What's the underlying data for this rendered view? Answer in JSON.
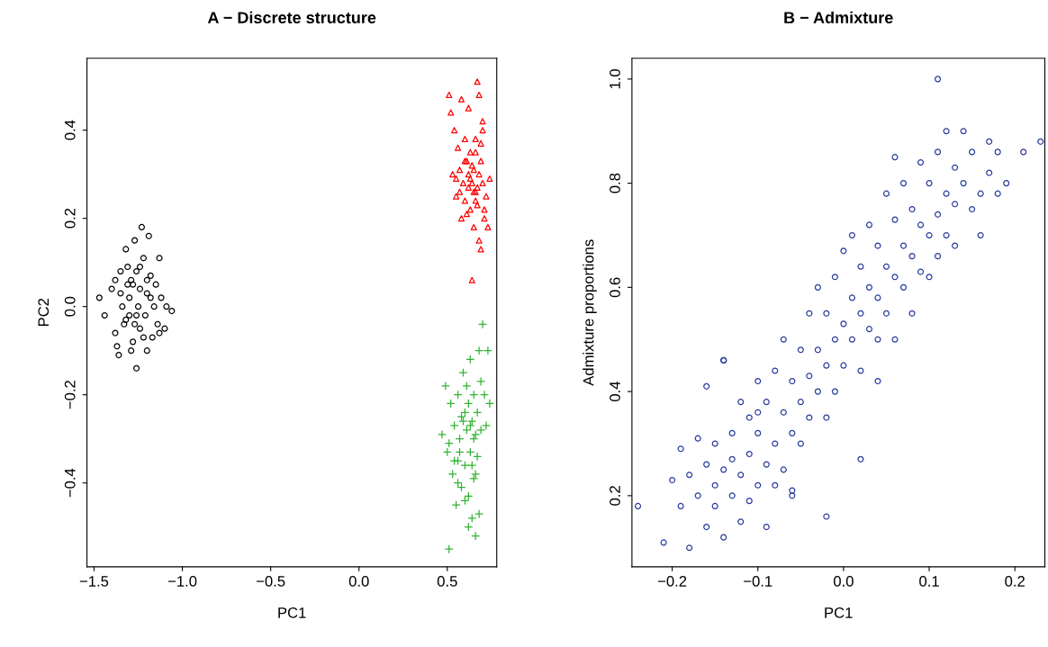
{
  "chart_data": [
    {
      "type": "scatter",
      "title": "A − Discrete structure",
      "xlabel": "PC1",
      "ylabel": "PC2",
      "xlim": [
        -1.54,
        0.78
      ],
      "ylim": [
        -0.59,
        0.563
      ],
      "xticks": [
        {
          "value": -1.5,
          "label": "−1.5"
        },
        {
          "value": -1.0,
          "label": "−1.0"
        },
        {
          "value": -0.5,
          "label": "−0.5"
        },
        {
          "value": 0.0,
          "label": "0.0"
        },
        {
          "value": 0.5,
          "label": "0.5"
        }
      ],
      "yticks": [
        {
          "value": -0.4,
          "label": "−0.4"
        },
        {
          "value": -0.2,
          "label": "−0.2"
        },
        {
          "value": 0.0,
          "label": "0.0"
        },
        {
          "value": 0.2,
          "label": "0.2"
        },
        {
          "value": 0.4,
          "label": "0.4"
        }
      ],
      "grid": false,
      "legend": false,
      "series": [
        {
          "color": "#000000",
          "marker": "circle",
          "x": [
            -1.47,
            -1.44,
            -1.4,
            -1.38,
            -1.37,
            -1.36,
            -1.35,
            -1.34,
            -1.33,
            -1.32,
            -1.31,
            -1.3,
            -1.3,
            -1.29,
            -1.28,
            -1.27,
            -1.26,
            -1.26,
            -1.25,
            -1.24,
            -1.24,
            -1.23,
            -1.22,
            -1.21,
            -1.2,
            -1.2,
            -1.19,
            -1.18,
            -1.17,
            -1.16,
            -1.15,
            -1.14,
            -1.13,
            -1.12,
            -1.1,
            -1.09,
            -1.06,
            -1.28,
            -1.32,
            -1.27,
            -1.22,
            -1.18,
            -1.35,
            -1.29,
            -1.24,
            -1.13,
            -1.31,
            -1.2,
            -1.26,
            -1.38
          ],
          "values": [
            0.02,
            -0.02,
            0.04,
            -0.06,
            -0.09,
            -0.11,
            0.08,
            0.0,
            -0.04,
            0.13,
            0.05,
            -0.02,
            0.02,
            0.06,
            -0.08,
            0.15,
            -0.14,
            0.08,
            0.0,
            -0.05,
            0.04,
            0.18,
            0.11,
            -0.02,
            0.03,
            -0.1,
            0.16,
            0.07,
            -0.07,
            0.0,
            0.05,
            -0.04,
            0.11,
            0.02,
            -0.05,
            0.0,
            -0.01,
            0.05,
            -0.03,
            -0.04,
            -0.07,
            0.02,
            0.03,
            -0.1,
            0.09,
            -0.06,
            0.09,
            0.06,
            -0.02,
            0.06
          ]
        },
        {
          "color": "#ff0000",
          "marker": "triangle",
          "x": [
            0.51,
            0.52,
            0.53,
            0.54,
            0.55,
            0.56,
            0.57,
            0.58,
            0.58,
            0.59,
            0.6,
            0.6,
            0.61,
            0.62,
            0.62,
            0.63,
            0.63,
            0.64,
            0.64,
            0.65,
            0.65,
            0.66,
            0.66,
            0.67,
            0.67,
            0.68,
            0.68,
            0.69,
            0.69,
            0.7,
            0.7,
            0.71,
            0.72,
            0.73,
            0.74,
            0.65,
            0.69,
            0.64,
            0.61,
            0.68,
            0.57,
            0.66,
            0.7,
            0.63,
            0.6,
            0.67,
            0.71,
            0.55,
            0.62,
            0.66
          ],
          "values": [
            0.48,
            0.44,
            0.3,
            0.4,
            0.25,
            0.36,
            0.31,
            0.47,
            0.2,
            0.28,
            0.38,
            0.24,
            0.33,
            0.27,
            0.45,
            0.22,
            0.35,
            0.28,
            0.06,
            0.31,
            0.18,
            0.38,
            0.26,
            0.51,
            0.23,
            0.48,
            0.15,
            0.33,
            0.13,
            0.28,
            0.4,
            0.2,
            0.25,
            0.18,
            0.29,
            0.26,
            0.37,
            0.32,
            0.21,
            0.3,
            0.26,
            0.35,
            0.42,
            0.29,
            0.33,
            0.27,
            0.22,
            0.29,
            0.3,
            0.24
          ]
        },
        {
          "color": "#33b233",
          "marker": "cross",
          "x": [
            0.47,
            0.49,
            0.5,
            0.51,
            0.52,
            0.53,
            0.54,
            0.55,
            0.56,
            0.56,
            0.57,
            0.58,
            0.58,
            0.59,
            0.6,
            0.6,
            0.61,
            0.62,
            0.62,
            0.63,
            0.63,
            0.64,
            0.64,
            0.65,
            0.65,
            0.66,
            0.66,
            0.67,
            0.67,
            0.68,
            0.69,
            0.7,
            0.71,
            0.72,
            0.73,
            0.74,
            0.51,
            0.56,
            0.59,
            0.61,
            0.64,
            0.66,
            0.68,
            0.62,
            0.57,
            0.6,
            0.65,
            0.69,
            0.54,
            0.63
          ],
          "values": [
            -0.29,
            -0.18,
            -0.33,
            -0.55,
            -0.22,
            -0.38,
            -0.27,
            -0.45,
            -0.2,
            -0.35,
            -0.3,
            -0.41,
            -0.25,
            -0.15,
            -0.36,
            -0.44,
            -0.28,
            -0.5,
            -0.22,
            -0.33,
            -0.12,
            -0.26,
            -0.48,
            -0.3,
            -0.2,
            -0.38,
            -0.52,
            -0.24,
            -0.34,
            -0.1,
            -0.28,
            -0.04,
            -0.2,
            -0.27,
            -0.1,
            -0.22,
            -0.31,
            -0.4,
            -0.26,
            -0.18,
            -0.36,
            -0.29,
            -0.47,
            -0.43,
            -0.33,
            -0.24,
            -0.39,
            -0.17,
            -0.35,
            -0.27
          ]
        }
      ]
    },
    {
      "type": "scatter",
      "title": "B − Admixture",
      "xlabel": "PC1",
      "ylabel": "Admixture proportions",
      "xlim": [
        -0.247,
        0.235
      ],
      "ylim": [
        0.0635,
        1.04
      ],
      "xticks": [
        {
          "value": -0.2,
          "label": "−0.2"
        },
        {
          "value": -0.1,
          "label": "−0.1"
        },
        {
          "value": 0.0,
          "label": "0.0"
        },
        {
          "value": 0.1,
          "label": "0.1"
        },
        {
          "value": 0.2,
          "label": "0.2"
        }
      ],
      "yticks": [
        {
          "value": 0.2,
          "label": "0.2"
        },
        {
          "value": 0.4,
          "label": "0.4"
        },
        {
          "value": 0.6,
          "label": "0.6"
        },
        {
          "value": 0.8,
          "label": "0.8"
        },
        {
          "value": 1.0,
          "label": "1.0"
        }
      ],
      "grid": false,
      "legend": false,
      "series": [
        {
          "color": "#283c9e",
          "marker": "circle",
          "x": [
            -0.24,
            -0.21,
            -0.2,
            -0.19,
            -0.19,
            -0.18,
            -0.18,
            -0.17,
            -0.17,
            -0.16,
            -0.16,
            -0.16,
            -0.15,
            -0.15,
            -0.15,
            -0.14,
            -0.14,
            -0.14,
            -0.13,
            -0.13,
            -0.13,
            -0.12,
            -0.12,
            -0.12,
            -0.11,
            -0.11,
            -0.11,
            -0.1,
            -0.1,
            -0.1,
            -0.09,
            -0.09,
            -0.09,
            -0.08,
            -0.08,
            -0.08,
            -0.07,
            -0.07,
            -0.07,
            -0.06,
            -0.06,
            -0.06,
            -0.05,
            -0.05,
            -0.05,
            -0.04,
            -0.04,
            -0.04,
            -0.03,
            -0.03,
            -0.03,
            -0.02,
            -0.02,
            -0.02,
            -0.01,
            -0.01,
            -0.01,
            0.0,
            0.0,
            0.0,
            0.01,
            0.01,
            0.01,
            0.02,
            0.02,
            0.02,
            0.03,
            0.03,
            0.03,
            0.04,
            0.04,
            0.04,
            0.05,
            0.05,
            0.05,
            0.06,
            0.06,
            0.06,
            0.07,
            0.07,
            0.07,
            0.08,
            0.08,
            0.08,
            0.09,
            0.09,
            0.09,
            0.1,
            0.1,
            0.1,
            0.11,
            0.11,
            0.11,
            0.12,
            0.12,
            0.12,
            0.13,
            0.13,
            0.13,
            0.14,
            0.14,
            0.15,
            0.15,
            0.16,
            0.16,
            0.17,
            0.17,
            0.18,
            0.18,
            0.19,
            0.21,
            0.23,
            0.11,
            0.02,
            -0.14,
            -0.02,
            -0.06,
            0.06,
            -0.1,
            0.04
          ],
          "values": [
            0.18,
            0.11,
            0.23,
            0.29,
            0.18,
            0.1,
            0.24,
            0.2,
            0.31,
            0.14,
            0.26,
            0.41,
            0.18,
            0.3,
            0.22,
            0.25,
            0.12,
            0.46,
            0.2,
            0.32,
            0.27,
            0.15,
            0.24,
            0.38,
            0.28,
            0.19,
            0.35,
            0.22,
            0.32,
            0.42,
            0.14,
            0.26,
            0.38,
            0.3,
            0.44,
            0.22,
            0.36,
            0.25,
            0.5,
            0.32,
            0.42,
            0.2,
            0.38,
            0.48,
            0.3,
            0.35,
            0.55,
            0.43,
            0.4,
            0.6,
            0.48,
            0.45,
            0.55,
            0.35,
            0.5,
            0.62,
            0.4,
            0.53,
            0.67,
            0.45,
            0.5,
            0.58,
            0.7,
            0.55,
            0.64,
            0.44,
            0.6,
            0.72,
            0.52,
            0.58,
            0.68,
            0.5,
            0.64,
            0.78,
            0.55,
            0.62,
            0.73,
            0.5,
            0.68,
            0.8,
            0.6,
            0.66,
            0.75,
            0.55,
            0.72,
            0.84,
            0.63,
            0.7,
            0.8,
            0.62,
            0.74,
            0.86,
            0.66,
            0.78,
            0.9,
            0.7,
            0.76,
            0.83,
            0.68,
            0.8,
            0.9,
            0.75,
            0.86,
            0.78,
            0.7,
            0.82,
            0.88,
            0.78,
            0.86,
            0.8,
            0.86,
            0.88,
            1.0,
            0.27,
            0.46,
            0.16,
            0.21,
            0.85,
            0.36,
            0.42
          ]
        }
      ]
    }
  ]
}
